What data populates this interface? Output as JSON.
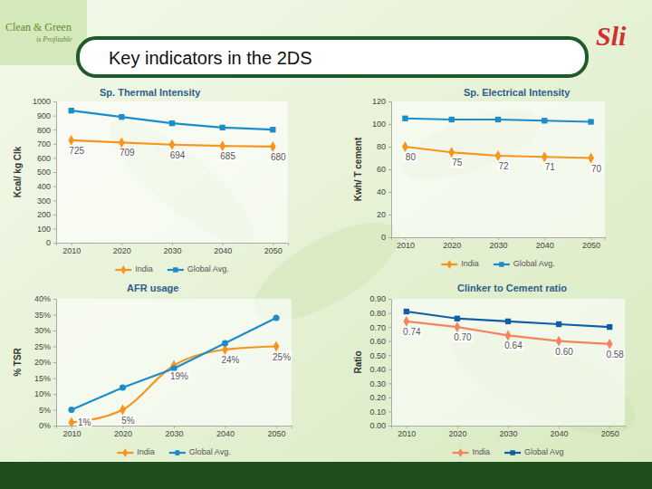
{
  "header": {
    "title": "Key indicators in the 2DS",
    "logo_left": [
      "Clean & Green",
      "is Profitable"
    ],
    "logo_right": "Sli"
  },
  "chart_data": [
    {
      "type": "line",
      "title": "Sp. Thermal Intensity",
      "y_label": "Kcal/ kg Clk",
      "categories": [
        "2010",
        "2020",
        "2030",
        "2040",
        "2050"
      ],
      "series": [
        {
          "name": "India",
          "color": "#f7941d",
          "marker": "diamond",
          "line_style": "solid",
          "data_labels": true,
          "values": [
            725,
            709,
            694,
            685,
            680
          ]
        },
        {
          "name": "Global Avg.",
          "color": "#1b8ccc",
          "marker": "square",
          "line_style": "solid",
          "values": [
            935,
            890,
            845,
            815,
            800
          ]
        }
      ],
      "ylim": [
        0,
        1000
      ],
      "yticks": [
        0,
        100,
        200,
        300,
        400,
        500,
        600,
        700,
        800,
        900,
        1000
      ],
      "grid": false,
      "legend": "bottom"
    },
    {
      "type": "line",
      "title": "Sp. Electrical Intensity",
      "y_label": "Kwh/ T cement",
      "categories": [
        "2010",
        "2020",
        "2030",
        "2040",
        "2050"
      ],
      "series": [
        {
          "name": "India",
          "color": "#f7941d",
          "marker": "diamond",
          "line_style": "solid",
          "data_labels": true,
          "values": [
            80,
            75,
            72,
            71,
            70
          ]
        },
        {
          "name": "Global Avg.",
          "color": "#1b8ccc",
          "marker": "square",
          "line_style": "solid",
          "values": [
            105,
            104,
            104,
            103,
            102
          ]
        }
      ],
      "ylim": [
        0,
        120
      ],
      "yticks": [
        0,
        20,
        40,
        60,
        80,
        100,
        120
      ],
      "grid": false,
      "legend": "bottom"
    },
    {
      "type": "line",
      "title": "AFR usage",
      "y_label": "% TSR",
      "categories": [
        "2010",
        "2020",
        "2030",
        "2040",
        "2050"
      ],
      "series": [
        {
          "name": "India",
          "color": "#f7941d",
          "marker": "diamond",
          "line_style": "smooth",
          "data_labels": true,
          "values": [
            1,
            5,
            19,
            24,
            25
          ],
          "value_labels": [
            "1%",
            "5%",
            "19%",
            "24%",
            "25%"
          ]
        },
        {
          "name": "Global Avg.",
          "color": "#1b8ccc",
          "marker": "circle",
          "line_style": "solid",
          "values": [
            5,
            12,
            18,
            26,
            34
          ]
        }
      ],
      "ylim": [
        0,
        40
      ],
      "yticks": [
        {
          "value": 0,
          "label": "0%"
        },
        {
          "value": 5,
          "label": "5%"
        },
        {
          "value": 10,
          "label": "10%"
        },
        {
          "value": 15,
          "label": "15%"
        },
        {
          "value": 20,
          "label": "20%"
        },
        {
          "value": 25,
          "label": "25%"
        },
        {
          "value": 30,
          "label": "30%"
        },
        {
          "value": 35,
          "label": "35%"
        },
        {
          "value": 40,
          "label": "40%"
        }
      ],
      "grid": false,
      "legend": "bottom"
    },
    {
      "type": "line",
      "title": "Clinker to Cement ratio",
      "y_label": "Ratio",
      "categories": [
        "2010",
        "2020",
        "2030",
        "2040",
        "2050"
      ],
      "series": [
        {
          "name": "India",
          "color": "#f4845f",
          "marker": "diamond",
          "line_style": "solid",
          "data_labels": true,
          "values": [
            0.74,
            0.7,
            0.64,
            0.6,
            0.58
          ],
          "value_labels": [
            "0.74",
            "0.70",
            "0.64",
            "0.60",
            "0.58"
          ]
        },
        {
          "name": "Global Avg",
          "color": "#0f5fa6",
          "marker": "square",
          "line_style": "solid",
          "values": [
            0.81,
            0.76,
            0.74,
            0.72,
            0.7
          ]
        }
      ],
      "ylim": [
        0,
        0.9
      ],
      "yticks": [
        {
          "value": 0,
          "label": "0.00"
        },
        {
          "value": 0.1,
          "label": "0.10"
        },
        {
          "value": 0.2,
          "label": "0.20"
        },
        {
          "value": 0.3,
          "label": "0.30"
        },
        {
          "value": 0.4,
          "label": "0.40"
        },
        {
          "value": 0.5,
          "label": "0.50"
        },
        {
          "value": 0.6,
          "label": "0.60"
        },
        {
          "value": 0.7,
          "label": "0.70"
        },
        {
          "value": 0.8,
          "label": "0.80"
        },
        {
          "value": 0.9,
          "label": "0.90"
        }
      ],
      "grid": false,
      "legend": "bottom"
    }
  ]
}
